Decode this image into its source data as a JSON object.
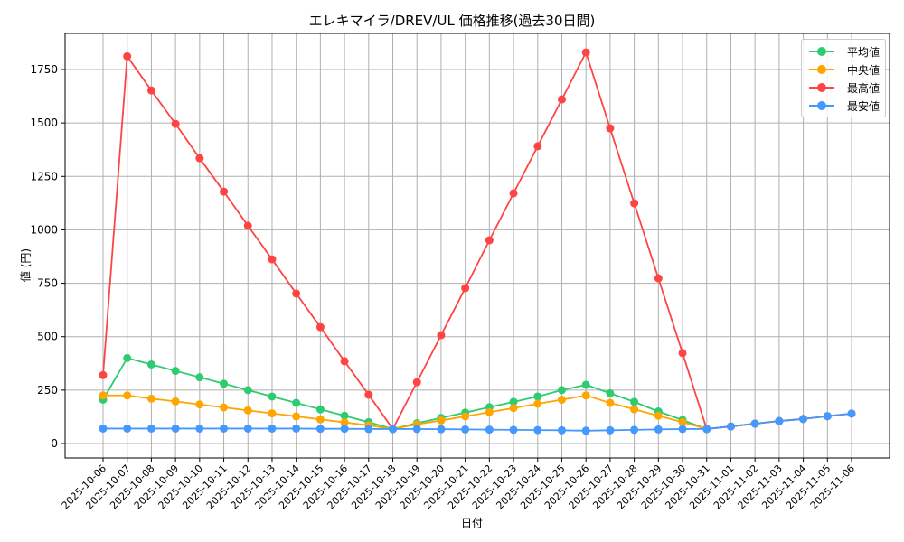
{
  "chart_data": {
    "type": "line",
    "title": "エレキマイラ/DREV/UL 価格推移(過去30日間)",
    "xlabel": "日付",
    "ylabel": "値 (円)",
    "ylim": [
      -30,
      1920
    ],
    "yticks": [
      0,
      250,
      500,
      750,
      1000,
      1250,
      1500,
      1750
    ],
    "grid": true,
    "legend_position": "upper right",
    "categories": [
      "2025-10-06",
      "2025-10-07",
      "2025-10-08",
      "2025-10-09",
      "2025-10-10",
      "2025-10-11",
      "2025-10-12",
      "2025-10-13",
      "2025-10-14",
      "2025-10-15",
      "2025-10-16",
      "2025-10-17",
      "2025-10-18",
      "2025-10-19",
      "2025-10-20",
      "2025-10-21",
      "2025-10-22",
      "2025-10-23",
      "2025-10-24",
      "2025-10-25",
      "2025-10-26",
      "2025-10-27",
      "2025-10-28",
      "2025-10-29",
      "2025-10-30",
      "2025-10-31",
      "2025-11-01",
      "2025-11-02",
      "2025-11-03",
      "2025-11-04",
      "2025-11-05",
      "2025-11-06"
    ],
    "series": [
      {
        "name": "平均値",
        "color": "#2ecc71",
        "values": [
          205,
          400,
          370,
          340,
          310,
          280,
          250,
          220,
          190,
          160,
          130,
          100,
          68,
          95,
          120,
          145,
          170,
          195,
          220,
          250,
          275,
          235,
          195,
          150,
          110,
          68,
          80,
          93,
          105,
          115,
          128,
          140
        ]
      },
      {
        "name": "中央値",
        "color": "#ffa500",
        "values": [
          225,
          225,
          210,
          197,
          183,
          169,
          155,
          141,
          127,
          113,
          99,
          85,
          68,
          90,
          108,
          127,
          147,
          166,
          186,
          205,
          225,
          190,
          160,
          130,
          100,
          68,
          80,
          93,
          105,
          115,
          128,
          140
        ]
      },
      {
        "name": "最高値",
        "color": "#ff4444",
        "values": [
          320,
          1812,
          1652,
          1496,
          1335,
          1179,
          1019,
          862,
          702,
          545,
          385,
          228,
          68,
          287,
          507,
          727,
          951,
          1171,
          1391,
          1610,
          1830,
          1475,
          1124,
          773,
          423,
          68,
          80,
          93,
          105,
          115,
          128,
          140
        ]
      },
      {
        "name": "最安値",
        "color": "#4499ff",
        "values": [
          70,
          70,
          70,
          70,
          70,
          70,
          70,
          70,
          70,
          69,
          69,
          68,
          68,
          68,
          67,
          66,
          65,
          64,
          63,
          62,
          60,
          62,
          64,
          66,
          68,
          68,
          80,
          93,
          105,
          115,
          128,
          140
        ]
      }
    ]
  }
}
